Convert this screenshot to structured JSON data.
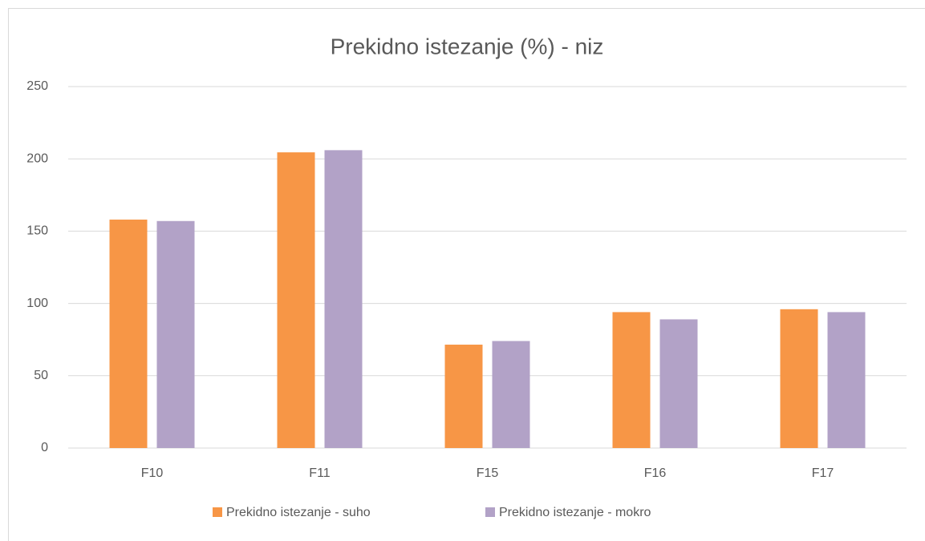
{
  "chart_data": {
    "type": "bar",
    "title": "Prekidno istezanje (%) - niz",
    "categories": [
      "F10",
      "F11",
      "F15",
      "F16",
      "F17"
    ],
    "series": [
      {
        "name": "Prekidno istezanje - suho",
        "color": "#f79646",
        "values": [
          158,
          204.5,
          71.5,
          94,
          96
        ]
      },
      {
        "name": "Prekidno istezanje - mokro",
        "color": "#b2a2c7",
        "values": [
          157,
          206,
          74,
          89,
          94
        ]
      }
    ],
    "ylim": [
      0,
      250
    ],
    "yticks": [
      0,
      50,
      100,
      150,
      200,
      250
    ],
    "grid": true,
    "legend": "bottom"
  }
}
